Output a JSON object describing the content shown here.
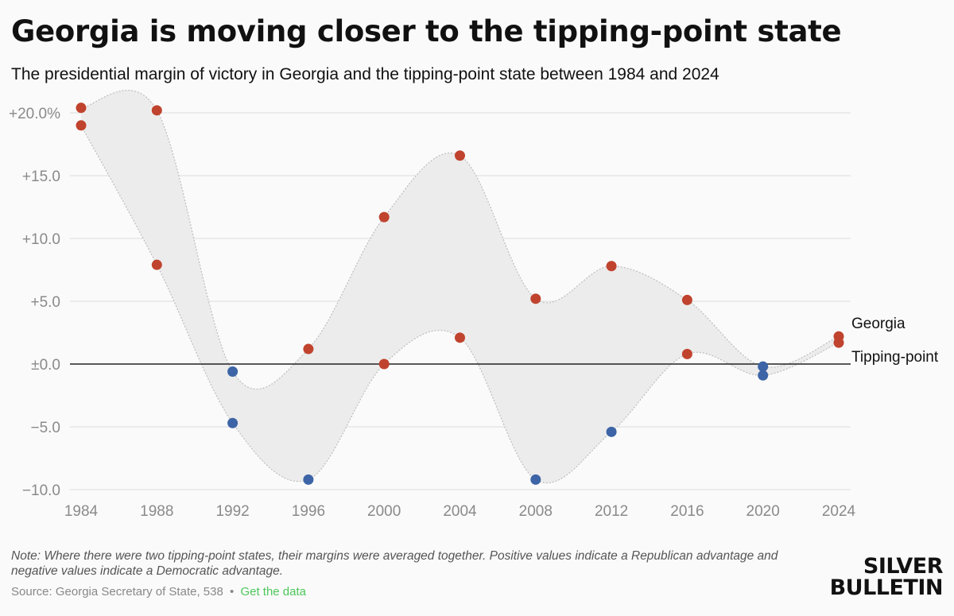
{
  "header": {
    "title": "Georgia is moving closer to the tipping-point state",
    "subtitle": "The presidential margin of victory in Georgia and the tipping-point state between 1984 and 2024"
  },
  "footer": {
    "note": "Note: Where there were two tipping-point states, their margins were averaged together. Positive values indicate a Republican advantage and negative values indicate a Democratic advantage.",
    "source": "Source: Georgia Secretary of State, 538",
    "separator": "•",
    "link_label": "Get the data",
    "brand_line1": "SILVER",
    "brand_line2": "BULLETIN"
  },
  "colors": {
    "republican": "#c0432e",
    "democratic": "#3d64a6",
    "band_fill": "#ececec",
    "band_stroke": "#bdbdbd",
    "grid": "#dcdcdc",
    "zero_line": "#222222",
    "tick_text": "#8a8a8a"
  },
  "chart_data": {
    "type": "line",
    "x": [
      1984,
      1988,
      1992,
      1996,
      2000,
      2004,
      2008,
      2012,
      2016,
      2020,
      2024
    ],
    "series": [
      {
        "name": "Georgia",
        "values": [
          20.4,
          20.2,
          -0.6,
          1.2,
          11.7,
          16.6,
          5.2,
          7.8,
          5.1,
          -0.2,
          2.2
        ]
      },
      {
        "name": "Tipping-point",
        "values": [
          19.0,
          7.9,
          -4.7,
          -9.2,
          0.0,
          2.1,
          -9.2,
          -5.4,
          0.8,
          -0.9,
          1.7
        ]
      }
    ],
    "y_tick_values": [
      20,
      15,
      10,
      5,
      0,
      -5,
      -10
    ],
    "y_tick_labels": [
      "+20.0%",
      "+15.0",
      "+10.0",
      "+5.0",
      "±0.0",
      "−5.0",
      "−10.0"
    ],
    "x_tick_labels": [
      "1984",
      "1988",
      "1992",
      "1996",
      "2000",
      "2004",
      "2008",
      "2012",
      "2016",
      "2020",
      "2024"
    ],
    "ylim": [
      -10,
      20
    ],
    "grid": true,
    "legend": "direct labels at right end",
    "point_color_rule": "red when positive (Republican), blue when negative (Democratic)"
  }
}
